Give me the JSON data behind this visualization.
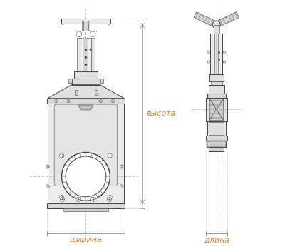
{
  "background_color": "#ffffff",
  "fig_width": 4.0,
  "fig_height": 3.46,
  "dpi": 100,
  "label_shirina": "ширина",
  "label_dlina": "длина",
  "label_vysota": "высота",
  "label_color": "#e87c2a",
  "drawing_color": "#444444",
  "dim_color": "#888888",
  "text_fontsize": 8,
  "fcx": 0.27,
  "scx": 0.8
}
